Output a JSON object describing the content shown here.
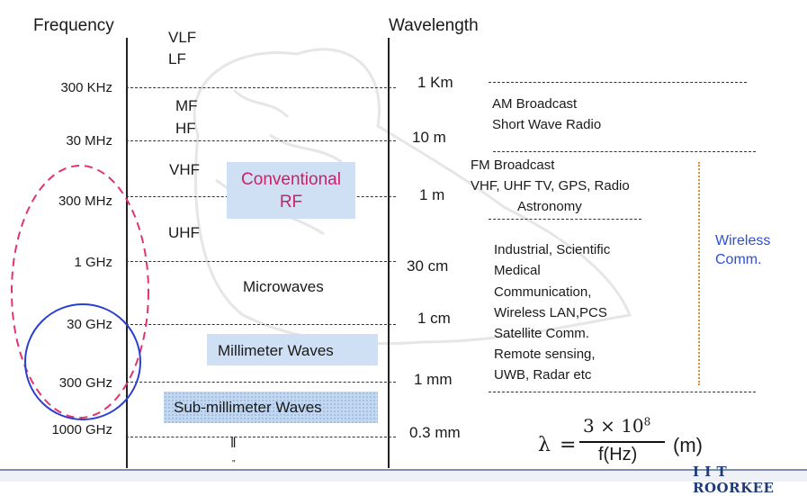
{
  "headers": {
    "frequency": "Frequency",
    "wavelength": "Wavelength"
  },
  "frequency_ticks": [
    "300 KHz",
    "30 MHz",
    "300 MHz",
    "1 GHz",
    "30 GHz",
    "300 GHz",
    "1000 GHz"
  ],
  "bands": {
    "vlf": "VLF",
    "lf": "LF",
    "mf": "MF",
    "hf": "HF",
    "vhf": "VHF",
    "uhf": "UHF",
    "microwaves": "Microwaves",
    "millimeter": "Millimeter  Waves",
    "submillimeter": "Sub-millimeter  Waves",
    "ellipsis_mark": "‖"
  },
  "conventional_rf": {
    "line1": "Conventional",
    "line2": "RF"
  },
  "wavelengths": [
    "1 Km",
    "10 m",
    "1 m",
    "30 cm",
    "1 cm",
    "1 mm",
    "0.3 mm"
  ],
  "applications": {
    "am": [
      "AM Broadcast",
      "Short Wave Radio"
    ],
    "fm": [
      "FM Broadcast",
      "VHF, UHF TV, GPS, Radio",
      "Astronomy"
    ],
    "industrial": [
      "Industrial, Scientific",
      "Medical",
      "Communication,",
      "Wireless LAN,PCS",
      "Satellite Comm.",
      "Remote sensing,",
      "UWB, Radar etc"
    ]
  },
  "wireless": {
    "line1": "Wireless",
    "line2": "Comm."
  },
  "formula": {
    "lambda": "λ",
    "equals": "=",
    "numerator": "3 × 10",
    "exponent": "8",
    "denominator": "f(Hz)",
    "unit": "(m)"
  },
  "logo": "I I T ROORKEE",
  "colors": {
    "conventional": "#cc1f6a",
    "wireless": "#2f4fd6",
    "ellipse": "#e0356e",
    "circle": "#2a3fd0",
    "orange_dots": "#e38a2e",
    "box_fill": "#cfe0f4"
  }
}
